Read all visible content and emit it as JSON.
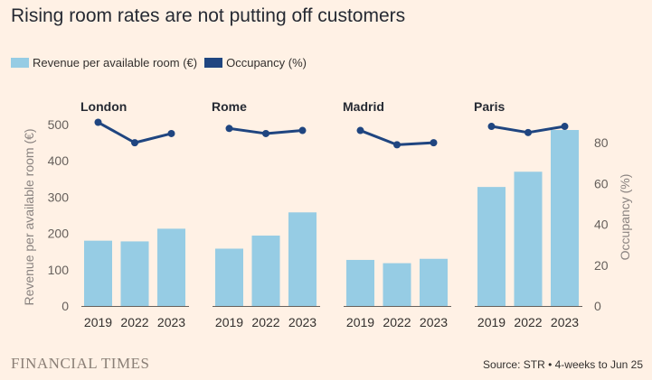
{
  "title": "Rising room rates are not putting off customers",
  "legend": {
    "revpar_label": "Revenue per available room (€)",
    "occupancy_label": "Occupancy (%)"
  },
  "colors": {
    "background": "#fff1e5",
    "revpar": "#96cce4",
    "occupancy": "#1f4580",
    "axis_text": "#66605c",
    "baseline": "#66605c"
  },
  "footer": {
    "brand": "FINANCIAL TIMES",
    "source": "Source: STR • 4-weeks to Jun 25"
  },
  "chart_data": {
    "type": "bar",
    "categories": [
      "2019",
      "2022",
      "2023"
    ],
    "left_axis": {
      "label": "Revenue per available room (€)",
      "ylim": [
        0,
        500
      ],
      "ticks": [
        0,
        100,
        200,
        300,
        400,
        500
      ]
    },
    "right_axis": {
      "label": "Occupancy (%)",
      "ylim": [
        0,
        90
      ],
      "ticks": [
        0,
        20,
        40,
        60,
        80
      ]
    },
    "panels": [
      {
        "city": "London",
        "revpar": [
          180,
          178,
          213
        ],
        "occupancy": [
          90,
          80,
          84.5
        ]
      },
      {
        "city": "Rome",
        "revpar": [
          158,
          194,
          258
        ],
        "occupancy": [
          87,
          84.5,
          86
        ]
      },
      {
        "city": "Madrid",
        "revpar": [
          127,
          118,
          130
        ],
        "occupancy": [
          86,
          79,
          80
        ]
      },
      {
        "city": "Paris",
        "revpar": [
          328,
          370,
          485
        ],
        "occupancy": [
          88,
          85,
          88
        ]
      }
    ]
  }
}
